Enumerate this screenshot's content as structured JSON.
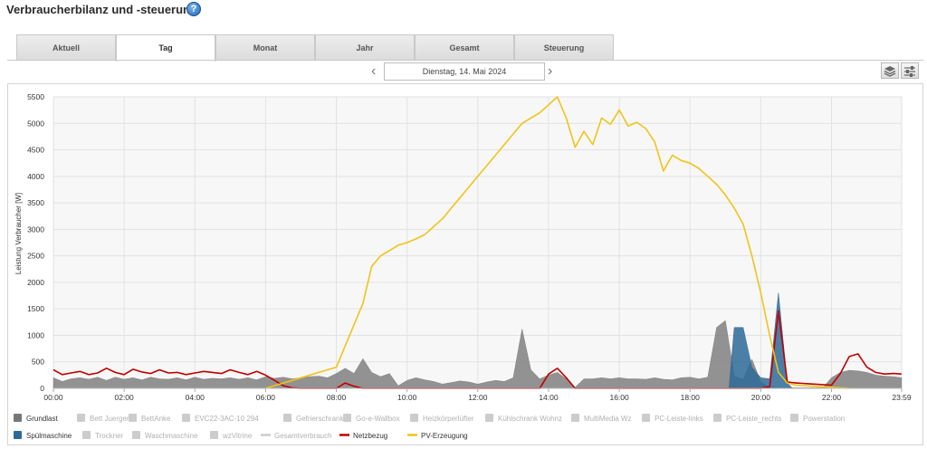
{
  "page": {
    "title": "Verbraucherbilanz und -steuerung"
  },
  "tabs": [
    {
      "label": "Aktuell",
      "active": false
    },
    {
      "label": "Tag",
      "active": true
    },
    {
      "label": "Monat",
      "active": false
    },
    {
      "label": "Jahr",
      "active": false
    },
    {
      "label": "Gesamt",
      "active": false
    },
    {
      "label": "Steuerung",
      "active": false
    }
  ],
  "date_nav": {
    "date": "Dienstag, 14. Mai 2024"
  },
  "icons": {
    "help": "help-icon",
    "prev": "chevron-left-icon",
    "next": "chevron-right-icon",
    "view1": "layers-icon",
    "view2": "sliders-icon"
  },
  "colors": {
    "grundlast": "#808080",
    "spuelmaschine": "#2e6a96",
    "netzbezug": "#c00000",
    "pv": "#f0c419",
    "grid": "#e4e4e4"
  },
  "chart_data": {
    "type": "area",
    "ylabel": "Leistung Verbraucher [W]",
    "ylim": [
      0,
      5500
    ],
    "y_ticks": [
      "0",
      "500",
      "1000",
      "1500",
      "2000",
      "2500",
      "3000",
      "3500",
      "4000",
      "4500",
      "5000",
      "5500"
    ],
    "x_tick_labels": [
      "00:00",
      "02:00",
      "04:00",
      "06:00",
      "08:00",
      "10:00",
      "12:00",
      "14:00",
      "16:00",
      "18:00",
      "20:00",
      "22:00",
      "23:59"
    ],
    "legend": [
      {
        "name": "Grundlast",
        "color": "#777777",
        "active": true,
        "style": "box"
      },
      {
        "name": "Bett Juergen",
        "color": "#cccccc",
        "active": false,
        "style": "box"
      },
      {
        "name": "BettAnke",
        "color": "#cccccc",
        "active": false,
        "style": "box"
      },
      {
        "name": "EVC22-3AC-10 294",
        "color": "#cccccc",
        "active": false,
        "style": "box"
      },
      {
        "name": "Gefrierschrank",
        "color": "#cccccc",
        "active": false,
        "style": "box"
      },
      {
        "name": "Go-e-Wallbox",
        "color": "#cccccc",
        "active": false,
        "style": "box"
      },
      {
        "name": "Heizkörperlüfter",
        "color": "#cccccc",
        "active": false,
        "style": "box"
      },
      {
        "name": "Kühlschrank Wohnz",
        "color": "#cccccc",
        "active": false,
        "style": "box"
      },
      {
        "name": "MultiMedia Wz",
        "color": "#cccccc",
        "active": false,
        "style": "box"
      },
      {
        "name": "PC-Leiste-links",
        "color": "#cccccc",
        "active": false,
        "style": "box"
      },
      {
        "name": "PC-Leiste_rechts",
        "color": "#cccccc",
        "active": false,
        "style": "box"
      },
      {
        "name": "Powerstation",
        "color": "#cccccc",
        "active": false,
        "style": "box"
      },
      {
        "name": "Spülmaschine",
        "color": "#2e6a96",
        "active": true,
        "style": "box"
      },
      {
        "name": "Trockner",
        "color": "#cccccc",
        "active": false,
        "style": "box"
      },
      {
        "name": "Waschmaschine",
        "color": "#cccccc",
        "active": false,
        "style": "box"
      },
      {
        "name": "wzVitrine",
        "color": "#cccccc",
        "active": false,
        "style": "box"
      },
      {
        "name": "Gesamtverbrauch",
        "color": "#cccccc",
        "active": false,
        "style": "line"
      },
      {
        "name": "Netzbezug",
        "color": "#c00000",
        "active": true,
        "style": "line"
      },
      {
        "name": "PV-Erzeugung",
        "color": "#f0c419",
        "active": true,
        "style": "line"
      }
    ],
    "series": [
      {
        "name": "Grundlast",
        "type": "area",
        "color": "#808080",
        "points": [
          [
            0,
            200
          ],
          [
            0.25,
            130
          ],
          [
            0.5,
            180
          ],
          [
            0.75,
            200
          ],
          [
            1,
            170
          ],
          [
            1.25,
            210
          ],
          [
            1.5,
            150
          ],
          [
            1.75,
            210
          ],
          [
            2,
            170
          ],
          [
            2.25,
            200
          ],
          [
            2.5,
            160
          ],
          [
            2.75,
            210
          ],
          [
            3,
            180
          ],
          [
            3.25,
            170
          ],
          [
            3.5,
            200
          ],
          [
            3.75,
            160
          ],
          [
            4,
            210
          ],
          [
            4.25,
            170
          ],
          [
            4.5,
            190
          ],
          [
            4.75,
            180
          ],
          [
            5,
            200
          ],
          [
            5.25,
            170
          ],
          [
            5.5,
            200
          ],
          [
            5.75,
            160
          ],
          [
            6,
            220
          ],
          [
            6.25,
            190
          ],
          [
            6.5,
            210
          ],
          [
            6.75,
            180
          ],
          [
            7,
            200
          ],
          [
            7.25,
            220
          ],
          [
            7.5,
            230
          ],
          [
            7.75,
            200
          ],
          [
            8,
            280
          ],
          [
            8.25,
            380
          ],
          [
            8.5,
            280
          ],
          [
            8.75,
            560
          ],
          [
            9,
            300
          ],
          [
            9.25,
            220
          ],
          [
            9.5,
            280
          ],
          [
            9.75,
            50
          ],
          [
            10,
            150
          ],
          [
            10.25,
            200
          ],
          [
            10.5,
            160
          ],
          [
            10.75,
            130
          ],
          [
            11,
            80
          ],
          [
            11.25,
            110
          ],
          [
            11.5,
            140
          ],
          [
            11.75,
            120
          ],
          [
            12,
            80
          ],
          [
            12.25,
            120
          ],
          [
            12.5,
            150
          ],
          [
            12.75,
            130
          ],
          [
            13,
            200
          ],
          [
            13.25,
            1120
          ],
          [
            13.5,
            350
          ],
          [
            13.75,
            180
          ],
          [
            14,
            250
          ],
          [
            14.25,
            300
          ],
          [
            14.5,
            180
          ],
          [
            14.75,
            20
          ],
          [
            15,
            180
          ],
          [
            15.25,
            180
          ],
          [
            15.5,
            200
          ],
          [
            15.75,
            180
          ],
          [
            16,
            200
          ],
          [
            16.25,
            180
          ],
          [
            16.5,
            180
          ],
          [
            16.75,
            170
          ],
          [
            17,
            200
          ],
          [
            17.25,
            170
          ],
          [
            17.5,
            160
          ],
          [
            17.75,
            200
          ],
          [
            18,
            210
          ],
          [
            18.25,
            180
          ],
          [
            18.5,
            210
          ],
          [
            18.75,
            1150
          ],
          [
            19,
            1280
          ],
          [
            19.25,
            230
          ],
          [
            19.5,
            170
          ],
          [
            19.75,
            550
          ],
          [
            20,
            120
          ],
          [
            20.25,
            20
          ],
          [
            20.5,
            10
          ],
          [
            20.75,
            10
          ],
          [
            21,
            10
          ],
          [
            21.25,
            10
          ],
          [
            21.5,
            10
          ],
          [
            21.75,
            10
          ],
          [
            22,
            200
          ],
          [
            22.25,
            300
          ],
          [
            22.5,
            340
          ],
          [
            22.75,
            330
          ],
          [
            23,
            300
          ],
          [
            23.25,
            250
          ],
          [
            23.5,
            230
          ],
          [
            23.75,
            220
          ],
          [
            23.98,
            200
          ]
        ]
      },
      {
        "name": "Spülmaschine",
        "type": "area",
        "color": "#2e6a96",
        "points": [
          [
            19.1,
            0
          ],
          [
            19.25,
            1150
          ],
          [
            19.5,
            1150
          ],
          [
            19.75,
            400
          ],
          [
            20.0,
            200
          ],
          [
            20.25,
            180
          ],
          [
            20.5,
            1800
          ],
          [
            20.75,
            100
          ],
          [
            20.9,
            0
          ]
        ]
      },
      {
        "name": "Netzbezug",
        "type": "line",
        "color": "#c00000",
        "points": [
          [
            0,
            350
          ],
          [
            0.25,
            260
          ],
          [
            0.5,
            290
          ],
          [
            0.75,
            320
          ],
          [
            1,
            260
          ],
          [
            1.25,
            290
          ],
          [
            1.5,
            380
          ],
          [
            1.75,
            300
          ],
          [
            2,
            260
          ],
          [
            2.25,
            360
          ],
          [
            2.5,
            310
          ],
          [
            2.75,
            280
          ],
          [
            3,
            350
          ],
          [
            3.25,
            290
          ],
          [
            3.5,
            300
          ],
          [
            3.75,
            260
          ],
          [
            4,
            290
          ],
          [
            4.25,
            320
          ],
          [
            4.5,
            300
          ],
          [
            4.75,
            280
          ],
          [
            5,
            350
          ],
          [
            5.25,
            300
          ],
          [
            5.5,
            260
          ],
          [
            5.75,
            320
          ],
          [
            6,
            250
          ],
          [
            6.25,
            150
          ],
          [
            6.5,
            50
          ],
          [
            6.75,
            10
          ],
          [
            7,
            0
          ],
          [
            7.5,
            0
          ],
          [
            7.75,
            0
          ],
          [
            8,
            0
          ],
          [
            8.25,
            100
          ],
          [
            8.5,
            40
          ],
          [
            8.75,
            0
          ],
          [
            9,
            0
          ],
          [
            9.5,
            0
          ],
          [
            10,
            0
          ],
          [
            10.5,
            0
          ],
          [
            11,
            0
          ],
          [
            11.5,
            0
          ],
          [
            12,
            0
          ],
          [
            12.5,
            0
          ],
          [
            13,
            0
          ],
          [
            13.5,
            0
          ],
          [
            13.75,
            0
          ],
          [
            14,
            270
          ],
          [
            14.25,
            380
          ],
          [
            14.5,
            200
          ],
          [
            14.75,
            0
          ],
          [
            15,
            0
          ],
          [
            16,
            0
          ],
          [
            17,
            0
          ],
          [
            18,
            0
          ],
          [
            19,
            0
          ],
          [
            19.5,
            0
          ],
          [
            20,
            0
          ],
          [
            20.25,
            30
          ],
          [
            20.5,
            1460
          ],
          [
            20.75,
            120
          ],
          [
            21,
            100
          ],
          [
            21.5,
            80
          ],
          [
            22,
            60
          ],
          [
            22.25,
            280
          ],
          [
            22.5,
            600
          ],
          [
            22.75,
            650
          ],
          [
            23,
            400
          ],
          [
            23.25,
            300
          ],
          [
            23.5,
            270
          ],
          [
            23.75,
            280
          ],
          [
            23.98,
            270
          ]
        ]
      },
      {
        "name": "PV-Erzeugung",
        "type": "line",
        "color": "#f0c419",
        "points": [
          [
            6,
            0
          ],
          [
            6.5,
            100
          ],
          [
            7,
            200
          ],
          [
            7.5,
            300
          ],
          [
            8,
            400
          ],
          [
            8.25,
            800
          ],
          [
            8.5,
            1200
          ],
          [
            8.75,
            1600
          ],
          [
            9,
            2300
          ],
          [
            9.25,
            2500
          ],
          [
            9.5,
            2600
          ],
          [
            9.75,
            2700
          ],
          [
            10,
            2750
          ],
          [
            10.25,
            2820
          ],
          [
            10.5,
            2900
          ],
          [
            10.75,
            3050
          ],
          [
            11,
            3200
          ],
          [
            11.25,
            3400
          ],
          [
            11.5,
            3600
          ],
          [
            11.75,
            3800
          ],
          [
            12,
            4000
          ],
          [
            12.25,
            4200
          ],
          [
            12.5,
            4400
          ],
          [
            12.75,
            4600
          ],
          [
            13,
            4800
          ],
          [
            13.25,
            5000
          ],
          [
            13.5,
            5100
          ],
          [
            13.75,
            5200
          ],
          [
            14,
            5350
          ],
          [
            14.25,
            5500
          ],
          [
            14.5,
            5100
          ],
          [
            14.75,
            4550
          ],
          [
            15,
            4850
          ],
          [
            15.25,
            4600
          ],
          [
            15.5,
            5100
          ],
          [
            15.75,
            4980
          ],
          [
            16,
            5250
          ],
          [
            16.25,
            4950
          ],
          [
            16.5,
            5020
          ],
          [
            16.75,
            4900
          ],
          [
            17,
            4650
          ],
          [
            17.25,
            4100
          ],
          [
            17.5,
            4400
          ],
          [
            17.75,
            4300
          ],
          [
            18,
            4250
          ],
          [
            18.25,
            4150
          ],
          [
            18.5,
            4000
          ],
          [
            18.75,
            3850
          ],
          [
            19,
            3650
          ],
          [
            19.25,
            3400
          ],
          [
            19.5,
            3100
          ],
          [
            19.75,
            2500
          ],
          [
            20,
            1800
          ],
          [
            20.25,
            1000
          ],
          [
            20.5,
            300
          ],
          [
            20.75,
            100
          ],
          [
            21,
            60
          ],
          [
            21.5,
            40
          ],
          [
            22,
            20
          ],
          [
            22.25,
            10
          ],
          [
            22.5,
            0
          ]
        ]
      }
    ]
  }
}
